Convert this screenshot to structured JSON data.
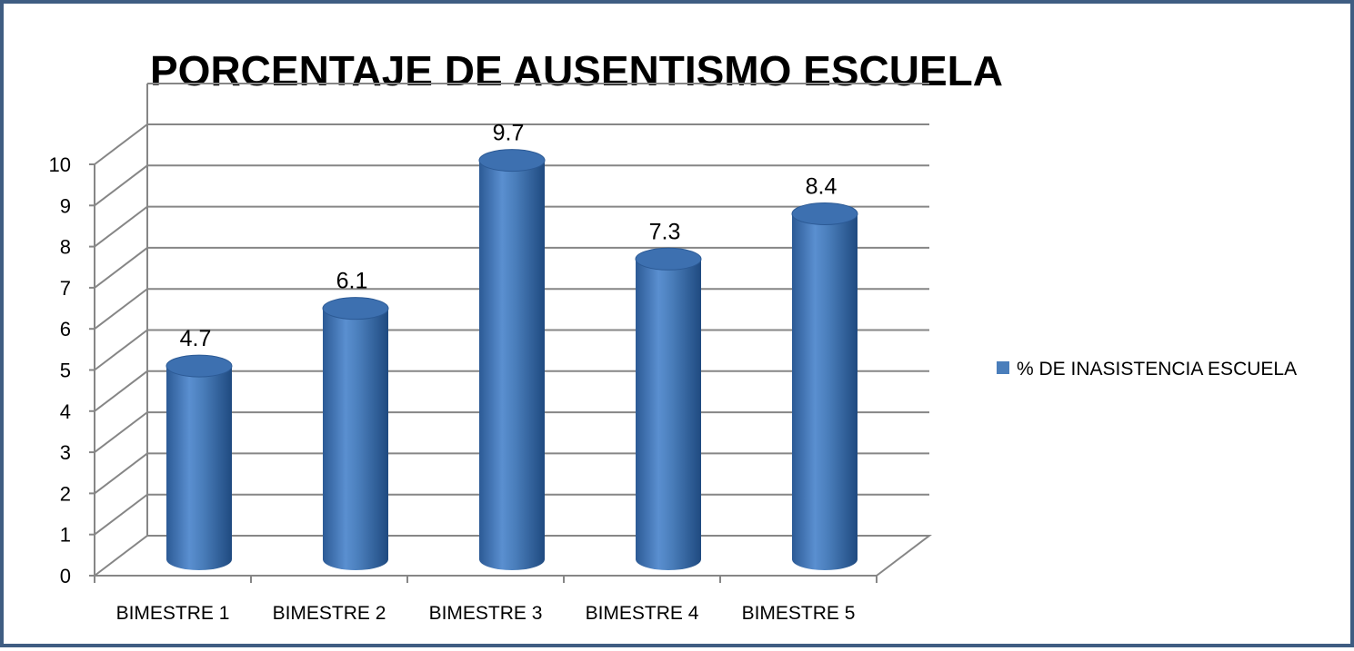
{
  "chart_data": {
    "type": "bar",
    "title": "PORCENTAJE DE AUSENTISMO  ESCUELA",
    "categories": [
      "BIMESTRE 1",
      "BIMESTRE 2",
      "BIMESTRE 3",
      "BIMESTRE 4",
      "BIMESTRE 5"
    ],
    "series": [
      {
        "name": "% DE INASISTENCIA ESCUELA",
        "values": [
          4.7,
          6.1,
          9.7,
          7.3,
          8.4
        ],
        "color": "#4a7ebb"
      }
    ],
    "yticks": [
      "0",
      "1",
      "2",
      "3",
      "4",
      "5",
      "6",
      "7",
      "8",
      "9",
      "10"
    ],
    "ylim": [
      0,
      10
    ],
    "grid": true,
    "legend_position": "right",
    "style": "3d-cylinder",
    "frame_color": "#3f5d82"
  }
}
